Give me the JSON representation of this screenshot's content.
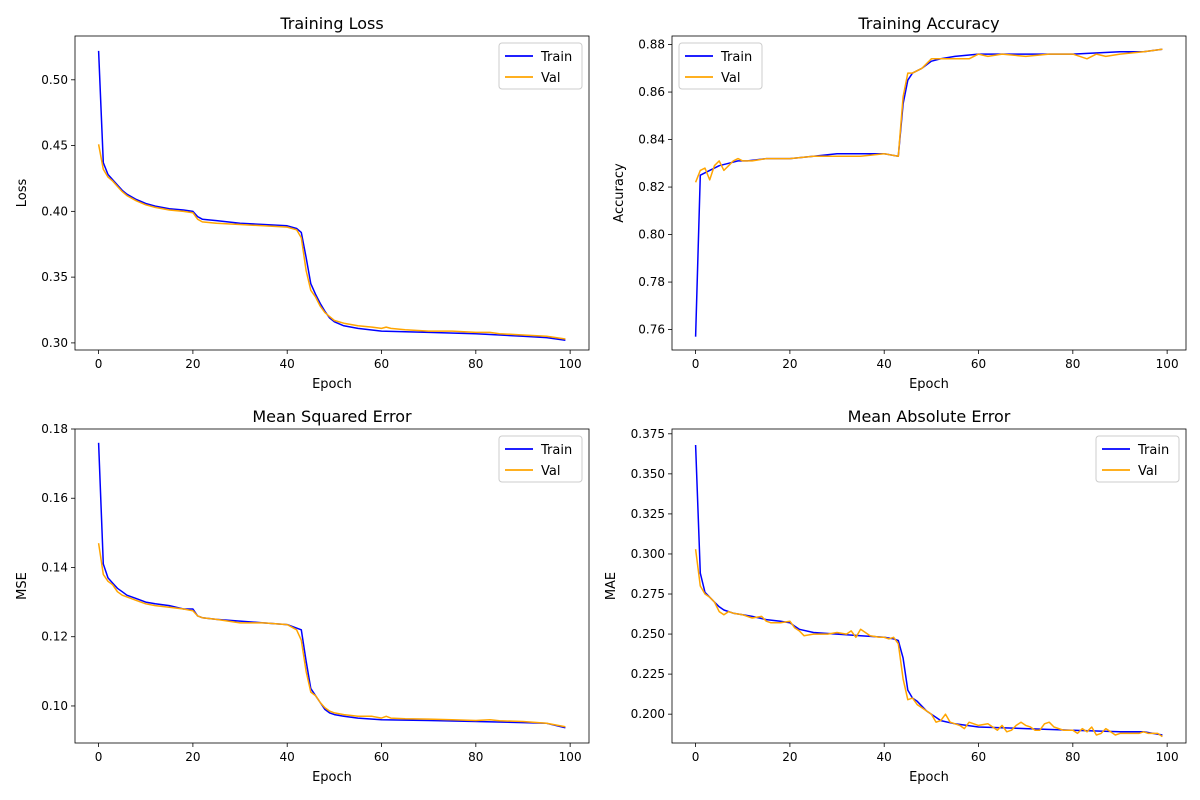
{
  "chart_data": [
    {
      "type": "line",
      "title": "Training Loss",
      "xlabel": "Epoch",
      "ylabel": "Loss",
      "xlim": [
        -5,
        104
      ],
      "ylim": [
        0.2946,
        0.5333
      ],
      "xticks": [
        0,
        20,
        40,
        60,
        80,
        100
      ],
      "yticks": [
        0.3,
        0.35,
        0.4,
        0.45,
        0.5
      ],
      "ytick_labels": [
        "0.30",
        "0.35",
        "0.40",
        "0.45",
        "0.50"
      ],
      "legend": {
        "position": "top-right",
        "entries": [
          "Train",
          "Val"
        ]
      },
      "series": [
        {
          "name": "Train",
          "color": "#0000ff",
          "x": [
            0,
            1,
            2,
            3,
            4,
            5,
            6,
            8,
            10,
            12,
            15,
            18,
            20,
            21,
            22,
            25,
            30,
            35,
            40,
            42,
            43,
            44,
            45,
            46,
            47,
            48,
            49,
            50,
            52,
            55,
            60,
            70,
            80,
            90,
            95,
            99
          ],
          "y": [
            0.522,
            0.437,
            0.428,
            0.424,
            0.42,
            0.416,
            0.413,
            0.409,
            0.406,
            0.404,
            0.402,
            0.401,
            0.4,
            0.396,
            0.394,
            0.393,
            0.391,
            0.39,
            0.389,
            0.387,
            0.384,
            0.365,
            0.345,
            0.337,
            0.33,
            0.324,
            0.319,
            0.316,
            0.313,
            0.311,
            0.309,
            0.308,
            0.307,
            0.305,
            0.304,
            0.302
          ]
        },
        {
          "name": "Val",
          "color": "#ffa500",
          "x": [
            0,
            1,
            2,
            3,
            4,
            5,
            6,
            8,
            10,
            12,
            15,
            18,
            20,
            21,
            22,
            25,
            30,
            35,
            40,
            42,
            43,
            44,
            45,
            46,
            47,
            48,
            49,
            50,
            52,
            55,
            58,
            60,
            61,
            62,
            65,
            70,
            75,
            80,
            83,
            85,
            90,
            95,
            99
          ],
          "y": [
            0.451,
            0.432,
            0.426,
            0.423,
            0.419,
            0.415,
            0.412,
            0.408,
            0.405,
            0.403,
            0.401,
            0.4,
            0.399,
            0.394,
            0.392,
            0.391,
            0.39,
            0.389,
            0.388,
            0.386,
            0.38,
            0.355,
            0.34,
            0.335,
            0.328,
            0.323,
            0.32,
            0.317,
            0.315,
            0.313,
            0.312,
            0.311,
            0.312,
            0.311,
            0.31,
            0.309,
            0.309,
            0.308,
            0.308,
            0.307,
            0.306,
            0.305,
            0.303
          ]
        }
      ]
    },
    {
      "type": "line",
      "title": "Training Accuracy",
      "xlabel": "Epoch",
      "ylabel": "Accuracy",
      "xlim": [
        -5,
        104
      ],
      "ylim": [
        0.7514,
        0.8836
      ],
      "xticks": [
        0,
        20,
        40,
        60,
        80,
        100
      ],
      "yticks": [
        0.76,
        0.78,
        0.8,
        0.82,
        0.84,
        0.86,
        0.88
      ],
      "ytick_labels": [
        "0.76",
        "0.78",
        "0.80",
        "0.82",
        "0.84",
        "0.86",
        "0.88"
      ],
      "legend": {
        "position": "top-left",
        "entries": [
          "Train",
          "Val"
        ]
      },
      "series": [
        {
          "name": "Train",
          "color": "#0000ff",
          "x": [
            0,
            1,
            2,
            3,
            5,
            7,
            9,
            11,
            15,
            20,
            25,
            30,
            35,
            40,
            43,
            44,
            45,
            46,
            47,
            48,
            50,
            52,
            55,
            60,
            70,
            80,
            90,
            95,
            99
          ],
          "y": [
            0.757,
            0.825,
            0.826,
            0.827,
            0.829,
            0.83,
            0.831,
            0.831,
            0.832,
            0.832,
            0.833,
            0.834,
            0.834,
            0.834,
            0.833,
            0.855,
            0.865,
            0.868,
            0.869,
            0.87,
            0.873,
            0.874,
            0.875,
            0.876,
            0.876,
            0.876,
            0.877,
            0.877,
            0.878
          ]
        },
        {
          "name": "Val",
          "color": "#ffa500",
          "x": [
            0,
            1,
            2,
            3,
            4,
            5,
            6,
            7,
            8,
            9,
            10,
            12,
            15,
            20,
            25,
            30,
            34,
            35,
            40,
            43,
            44,
            45,
            46,
            47,
            48,
            50,
            52,
            55,
            58,
            60,
            62,
            65,
            70,
            75,
            80,
            83,
            85,
            87,
            90,
            95,
            99
          ],
          "y": [
            0.822,
            0.827,
            0.828,
            0.823,
            0.829,
            0.831,
            0.827,
            0.829,
            0.831,
            0.832,
            0.831,
            0.831,
            0.832,
            0.832,
            0.833,
            0.833,
            0.833,
            0.833,
            0.834,
            0.833,
            0.858,
            0.868,
            0.868,
            0.869,
            0.87,
            0.874,
            0.874,
            0.874,
            0.874,
            0.876,
            0.875,
            0.876,
            0.875,
            0.876,
            0.876,
            0.874,
            0.876,
            0.875,
            0.876,
            0.877,
            0.878
          ]
        }
      ]
    },
    {
      "type": "line",
      "title": "Mean Squared Error",
      "xlabel": "Epoch",
      "ylabel": "MSE",
      "xlim": [
        -5,
        104
      ],
      "ylim": [
        0.0893,
        0.18
      ],
      "xticks": [
        0,
        20,
        40,
        60,
        80,
        100
      ],
      "yticks": [
        0.1,
        0.12,
        0.14,
        0.16,
        0.18
      ],
      "ytick_labels": [
        "0.10",
        "0.12",
        "0.14",
        "0.16",
        "0.18"
      ],
      "legend": {
        "position": "top-right",
        "entries": [
          "Train",
          "Val"
        ]
      },
      "series": [
        {
          "name": "Train",
          "color": "#0000ff",
          "x": [
            0,
            1,
            2,
            3,
            4,
            5,
            6,
            8,
            10,
            12,
            15,
            18,
            20,
            21,
            22,
            25,
            30,
            35,
            40,
            42,
            43,
            44,
            45,
            46,
            47,
            48,
            49,
            50,
            52,
            55,
            60,
            70,
            80,
            90,
            95,
            99
          ],
          "y": [
            0.176,
            0.141,
            0.137,
            0.1355,
            0.134,
            0.133,
            0.132,
            0.131,
            0.13,
            0.1295,
            0.129,
            0.128,
            0.128,
            0.126,
            0.1255,
            0.125,
            0.1245,
            0.124,
            0.1235,
            0.1225,
            0.122,
            0.113,
            0.105,
            0.103,
            0.101,
            0.099,
            0.098,
            0.0975,
            0.097,
            0.0965,
            0.096,
            0.0958,
            0.0955,
            0.0952,
            0.095,
            0.0937
          ]
        },
        {
          "name": "Val",
          "color": "#ffa500",
          "x": [
            0,
            1,
            2,
            3,
            4,
            5,
            6,
            8,
            10,
            12,
            15,
            18,
            20,
            21,
            22,
            25,
            30,
            35,
            40,
            42,
            43,
            44,
            45,
            46,
            47,
            48,
            49,
            50,
            52,
            55,
            58,
            60,
            61,
            62,
            65,
            70,
            75,
            80,
            83,
            85,
            90,
            95,
            99
          ],
          "y": [
            0.147,
            0.138,
            0.136,
            0.135,
            0.133,
            0.132,
            0.1315,
            0.1305,
            0.1295,
            0.129,
            0.1285,
            0.128,
            0.1275,
            0.126,
            0.1255,
            0.125,
            0.124,
            0.124,
            0.1235,
            0.122,
            0.119,
            0.11,
            0.104,
            0.103,
            0.101,
            0.0995,
            0.0985,
            0.098,
            0.0975,
            0.097,
            0.097,
            0.0965,
            0.097,
            0.0965,
            0.0963,
            0.0962,
            0.096,
            0.0958,
            0.096,
            0.0957,
            0.0955,
            0.095,
            0.094
          ]
        }
      ]
    },
    {
      "type": "line",
      "title": "Mean Absolute Error",
      "xlabel": "Epoch",
      "ylabel": "MAE",
      "xlim": [
        -5,
        104
      ],
      "ylim": [
        0.182,
        0.378
      ],
      "xticks": [
        0,
        20,
        40,
        60,
        80,
        100
      ],
      "yticks": [
        0.2,
        0.225,
        0.25,
        0.275,
        0.3,
        0.325,
        0.35,
        0.375
      ],
      "ytick_labels": [
        "0.200",
        "0.225",
        "0.250",
        "0.275",
        "0.300",
        "0.325",
        "0.350",
        "0.375"
      ],
      "legend": {
        "position": "top-right",
        "entries": [
          "Train",
          "Val"
        ]
      },
      "series": [
        {
          "name": "Train",
          "color": "#0000ff",
          "x": [
            0,
            1,
            2,
            3,
            4,
            5,
            6,
            8,
            10,
            12,
            15,
            18,
            20,
            21,
            22,
            25,
            30,
            35,
            40,
            42,
            43,
            44,
            45,
            46,
            47,
            48,
            49,
            50,
            52,
            55,
            60,
            70,
            80,
            90,
            95,
            99
          ],
          "y": [
            0.368,
            0.288,
            0.276,
            0.273,
            0.27,
            0.267,
            0.265,
            0.263,
            0.262,
            0.261,
            0.259,
            0.258,
            0.257,
            0.255,
            0.253,
            0.251,
            0.25,
            0.249,
            0.248,
            0.247,
            0.246,
            0.235,
            0.215,
            0.21,
            0.208,
            0.205,
            0.202,
            0.2,
            0.196,
            0.194,
            0.192,
            0.191,
            0.19,
            0.189,
            0.189,
            0.187
          ]
        },
        {
          "name": "Val",
          "color": "#ffa500",
          "x": [
            0,
            1,
            2,
            3,
            4,
            5,
            6,
            7,
            8,
            10,
            12,
            14,
            15,
            16,
            18,
            20,
            21,
            22,
            23,
            25,
            28,
            30,
            32,
            33,
            34,
            35,
            37,
            39,
            40,
            41,
            42,
            43,
            44,
            45,
            46,
            47,
            48,
            50,
            51,
            52,
            53,
            54,
            56,
            57,
            58,
            60,
            62,
            63,
            64,
            65,
            66,
            67,
            68,
            69,
            70,
            71,
            72,
            73,
            74,
            75,
            76,
            78,
            80,
            81,
            82,
            83,
            84,
            85,
            86,
            87,
            88,
            89,
            90,
            92,
            94,
            95,
            96,
            98,
            99
          ],
          "y": [
            0.303,
            0.28,
            0.275,
            0.273,
            0.27,
            0.264,
            0.262,
            0.264,
            0.263,
            0.262,
            0.26,
            0.261,
            0.258,
            0.257,
            0.257,
            0.258,
            0.254,
            0.252,
            0.249,
            0.25,
            0.25,
            0.251,
            0.25,
            0.252,
            0.248,
            0.253,
            0.249,
            0.248,
            0.248,
            0.247,
            0.248,
            0.244,
            0.222,
            0.209,
            0.21,
            0.206,
            0.204,
            0.2,
            0.195,
            0.196,
            0.2,
            0.195,
            0.193,
            0.191,
            0.195,
            0.193,
            0.194,
            0.192,
            0.19,
            0.193,
            0.189,
            0.19,
            0.193,
            0.195,
            0.193,
            0.192,
            0.19,
            0.19,
            0.194,
            0.195,
            0.192,
            0.19,
            0.19,
            0.188,
            0.191,
            0.189,
            0.192,
            0.187,
            0.188,
            0.191,
            0.189,
            0.187,
            0.188,
            0.188,
            0.188,
            0.189,
            0.188,
            0.188,
            0.186
          ]
        }
      ]
    }
  ]
}
